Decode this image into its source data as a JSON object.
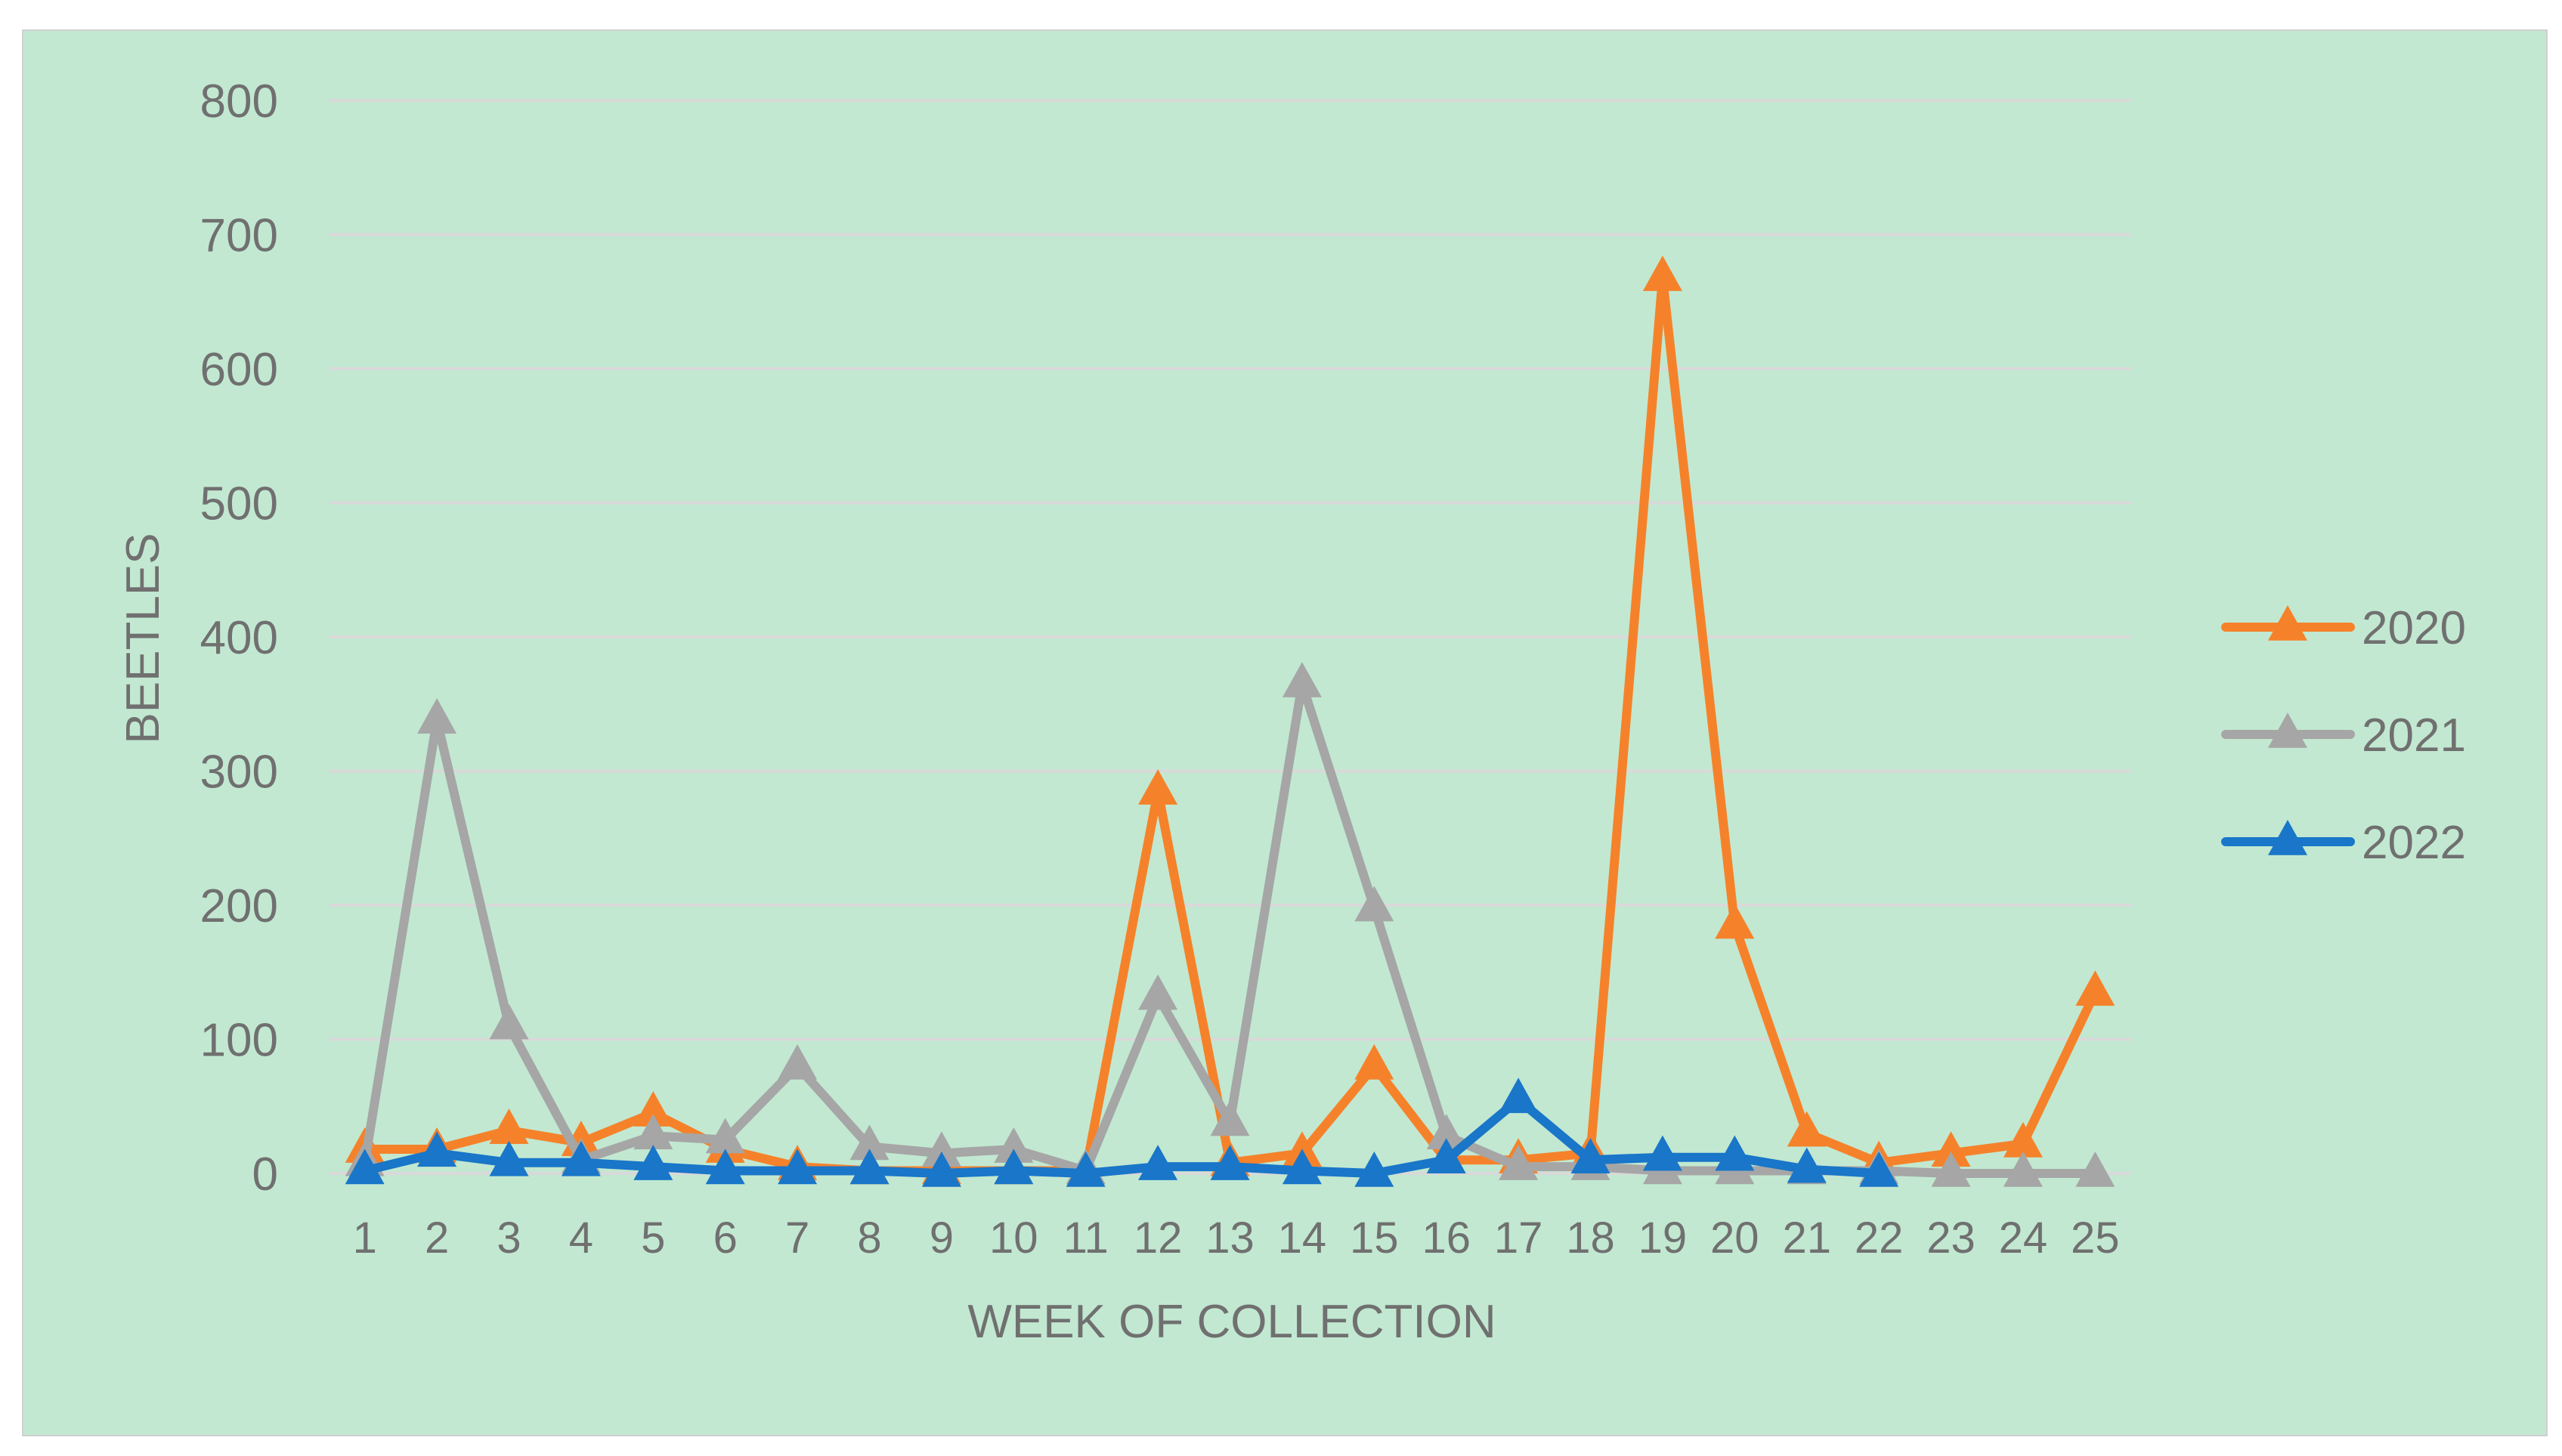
{
  "chart_data": {
    "type": "line",
    "title": "",
    "xlabel": "WEEK OF COLLECTION",
    "ylabel": "BEETLES",
    "categories": [
      "1",
      "2",
      "3",
      "4",
      "5",
      "6",
      "7",
      "8",
      "9",
      "10",
      "11",
      "12",
      "13",
      "14",
      "15",
      "16",
      "17",
      "18",
      "19",
      "20",
      "21",
      "22",
      "23",
      "24",
      "25"
    ],
    "ylim": [
      0,
      800
    ],
    "yticks": [
      0,
      100,
      200,
      300,
      400,
      500,
      600,
      700,
      800
    ],
    "grid": true,
    "legend_position": "right",
    "marker": "triangle",
    "background_color": "#c2e8d1",
    "series": [
      {
        "name": "2020",
        "color": "#f5822a",
        "values": [
          18,
          18,
          32,
          23,
          45,
          18,
          5,
          2,
          2,
          2,
          2,
          285,
          8,
          15,
          80,
          10,
          10,
          15,
          668,
          185,
          30,
          8,
          15,
          22,
          135
        ]
      },
      {
        "name": "2021",
        "color": "#a6a6a6",
        "values": [
          8,
          338,
          110,
          10,
          28,
          25,
          80,
          20,
          15,
          18,
          2,
          132,
          38,
          365,
          198,
          28,
          5,
          5,
          2,
          2,
          2,
          2,
          0,
          0,
          0
        ]
      },
      {
        "name": "2022",
        "color": "#1976c8",
        "values": [
          2,
          15,
          8,
          8,
          5,
          2,
          2,
          2,
          0,
          2,
          0,
          5,
          5,
          2,
          0,
          10,
          55,
          10,
          12,
          12,
          3,
          0,
          null,
          null,
          null
        ]
      }
    ]
  }
}
